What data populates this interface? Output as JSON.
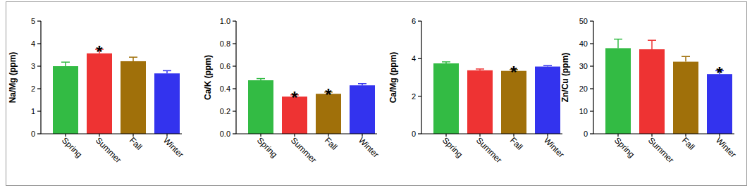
{
  "chart_data": [
    {
      "type": "bar",
      "y_label": "Na/Mg (ppm)",
      "categories": [
        "Spring",
        "Summer",
        "Fall",
        "Winter"
      ],
      "values": [
        3.0,
        3.57,
        3.22,
        2.68
      ],
      "errors": [
        0.18,
        0.18,
        0.18,
        0.12
      ],
      "colors": [
        "#33bb44",
        "#ee3333",
        "#a0700a",
        "#3333ee"
      ],
      "ylim": [
        0,
        5
      ],
      "yticks": [
        0,
        1,
        2,
        3,
        4,
        5
      ],
      "annotations": [
        {
          "text": "*",
          "category": "Summer"
        }
      ]
    },
    {
      "type": "bar",
      "y_label": "Ca/K (ppm)",
      "categories": [
        "Spring",
        "Summer",
        "Fall",
        "Winter"
      ],
      "values": [
        0.475,
        0.33,
        0.355,
        0.43
      ],
      "errors": [
        0.015,
        0.015,
        0.015,
        0.015
      ],
      "colors": [
        "#33bb44",
        "#ee3333",
        "#a0700a",
        "#3333ee"
      ],
      "ylim": [
        0,
        1.0
      ],
      "yticks": [
        {
          "value": 0,
          "label": "0.0"
        },
        0.2,
        0.4,
        0.6,
        0.8,
        {
          "value": 1.0,
          "label": "1.0"
        }
      ],
      "annotations": [
        {
          "text": "*",
          "category": "Summer"
        },
        {
          "text": "*",
          "category": "Fall"
        }
      ]
    },
    {
      "type": "bar",
      "y_label": "Ca/Mg (ppm)",
      "categories": [
        "Spring",
        "Summer",
        "Fall",
        "Winter"
      ],
      "values": [
        3.75,
        3.38,
        3.35,
        3.58
      ],
      "errors": [
        0.08,
        0.07,
        0.07,
        0.05
      ],
      "colors": [
        "#33bb44",
        "#ee3333",
        "#a0700a",
        "#3333ee"
      ],
      "ylim": [
        0,
        6
      ],
      "yticks": [
        0,
        2,
        4,
        6
      ],
      "annotations": [
        {
          "text": "*",
          "category": "Fall"
        }
      ]
    },
    {
      "type": "bar",
      "y_label": "Zn/Cu (ppm)",
      "categories": [
        "Spring",
        "Summer",
        "Fall",
        "Winter"
      ],
      "values": [
        38,
        37.5,
        32,
        26.5
      ],
      "errors": [
        4,
        4,
        2.3,
        1.5
      ],
      "colors": [
        "#33bb44",
        "#ee3333",
        "#a0700a",
        "#3333ee"
      ],
      "ylim": [
        0,
        50
      ],
      "yticks": [
        0,
        10,
        20,
        30,
        40,
        50
      ],
      "annotations": [
        {
          "text": "*",
          "category": "Winter"
        }
      ]
    }
  ]
}
